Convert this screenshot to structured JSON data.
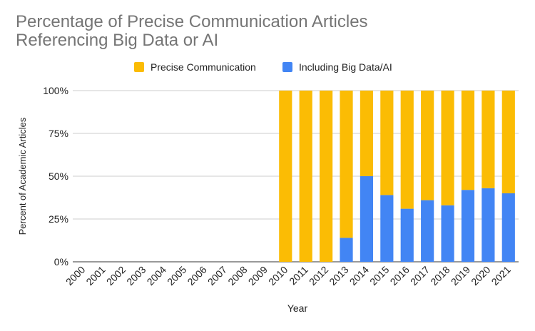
{
  "chart_data": {
    "type": "bar",
    "stacked": true,
    "title": "Percentage of Precise Communication Articles Referencing Big Data or AI",
    "title_lines": [
      "Percentage of Precise Communication Articles",
      "Referencing Big Data or AI"
    ],
    "xlabel": "Year",
    "ylabel": "Percent of Academic Articles",
    "ylim": [
      0,
      100
    ],
    "yticks": [
      {
        "value": 0,
        "label": "0%"
      },
      {
        "value": 25,
        "label": "25%"
      },
      {
        "value": 50,
        "label": "50%"
      },
      {
        "value": 75,
        "label": "75%"
      },
      {
        "value": 100,
        "label": "100%"
      }
    ],
    "legend_position": "top-center",
    "categories": [
      "2000",
      "2001",
      "2002",
      "2003",
      "2004",
      "2005",
      "2006",
      "2007",
      "2008",
      "2009",
      "2010",
      "2011",
      "2012",
      "2013",
      "2014",
      "2015",
      "2016",
      "2017",
      "2018",
      "2019",
      "2020",
      "2021"
    ],
    "series": [
      {
        "name": "Precise Communication",
        "color": "#fbbc04",
        "values": [
          0,
          0,
          0,
          0,
          0,
          0,
          0,
          0,
          0,
          0,
          100,
          100,
          100,
          86,
          50,
          61,
          69,
          64,
          67,
          58,
          57,
          60
        ]
      },
      {
        "name": "Including Big Data/AI",
        "color": "#4285f4",
        "values": [
          0,
          0,
          0,
          0,
          0,
          0,
          0,
          0,
          0,
          0,
          0,
          0,
          0,
          14,
          50,
          39,
          31,
          36,
          33,
          42,
          43,
          40
        ]
      }
    ]
  }
}
